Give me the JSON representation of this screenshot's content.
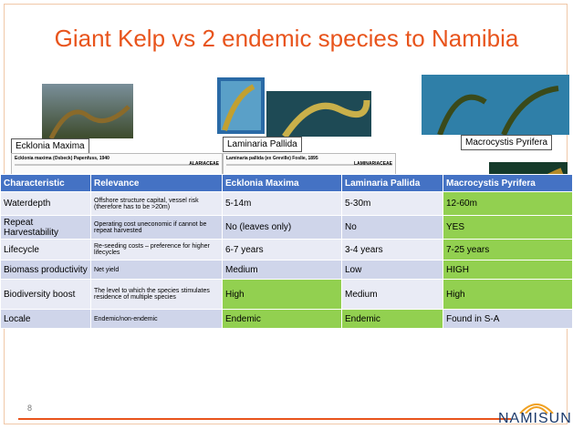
{
  "header": {
    "title": "Giant Kelp vs 2 endemic species to Namibia"
  },
  "figures": [
    {
      "caption": "Ecklonia Maxima",
      "doc_heading": "Ecklonia maxima (Osbeck) Papenfuss, 1940",
      "family": "ALARIACEAE"
    },
    {
      "caption": "Laminaria Pallida",
      "doc_heading": "Laminaria pallida (ex Greville) Foslie, 1895",
      "family": "LAMINARIACEAE"
    },
    {
      "caption": "Macrocystis Pyrifera"
    }
  ],
  "table": {
    "header": [
      "Characteristic",
      "Relevance",
      "Ecklonia Maxima",
      "Laminaria Pallida",
      "Macrocystis Pyrifera"
    ],
    "rows": [
      [
        "Waterdepth",
        "Offshore structure capital, vessel risk (therefore has to be >20m)",
        "5-14m",
        "5-30m",
        "12-60m"
      ],
      [
        "Repeat Harvestability",
        "Operating cost uneconomic if cannot be repeat harvested",
        "No (leaves only)",
        "No",
        "YES"
      ],
      [
        "Lifecycle",
        "Re-seeding costs – preference for higher lifecycles",
        "6-7 years",
        "3-4 years",
        "7-25 years"
      ],
      [
        "Biomass productivity",
        "Net yield",
        "Medium",
        "Low",
        "HIGH"
      ],
      [
        "Biodiversity boost",
        "The level to which the species stimulates residence of multiple species",
        "High",
        "Medium",
        "High"
      ],
      [
        "Locale",
        "Endemic/non-endemic",
        "Endemic",
        "Endemic",
        "Found in S-A"
      ]
    ]
  },
  "footer": {
    "page": "8",
    "logo": "NAMISUN"
  }
}
